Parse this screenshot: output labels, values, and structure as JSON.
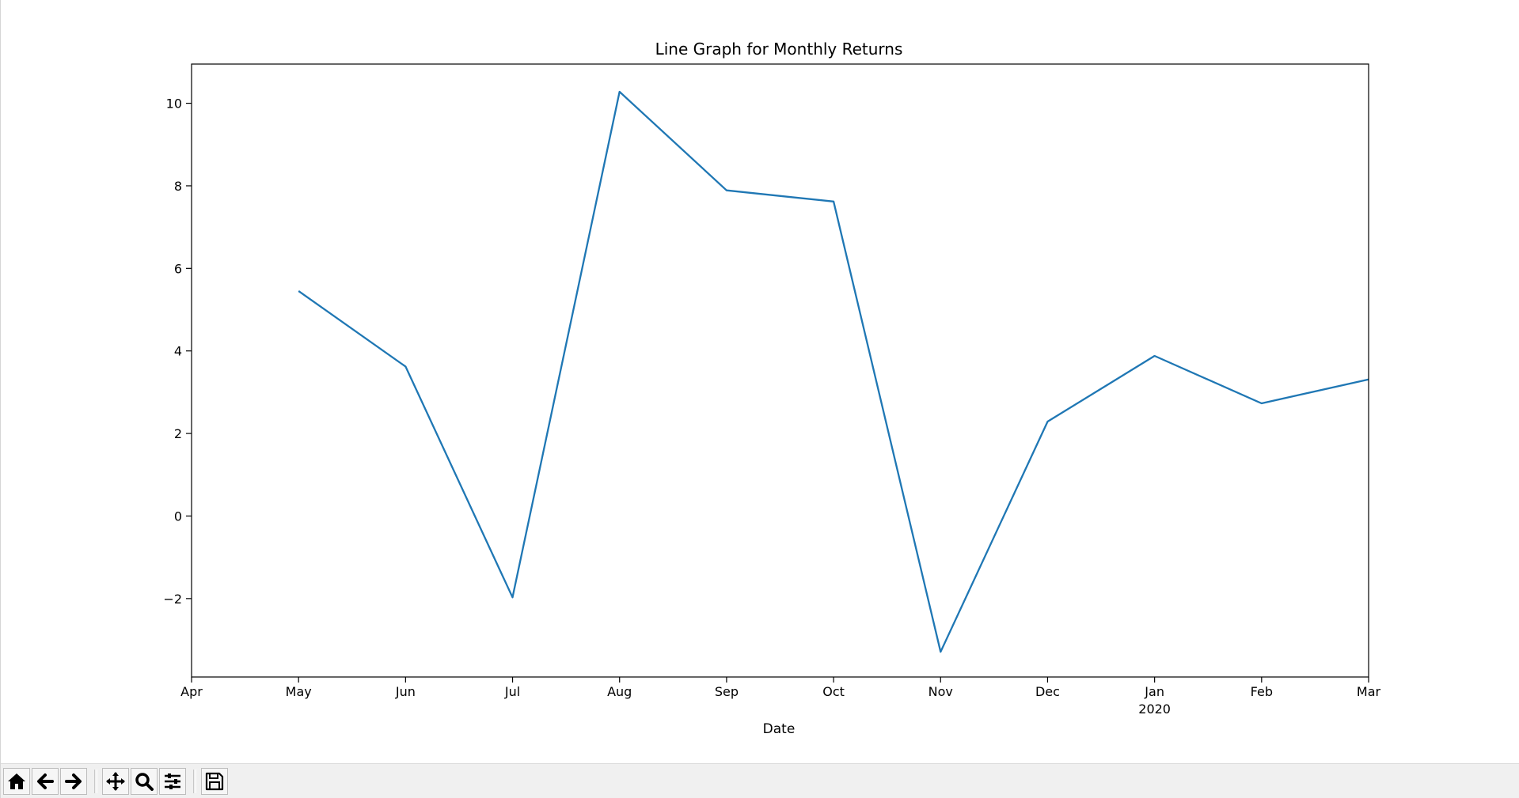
{
  "chart_data": {
    "type": "line",
    "title": "Line Graph for Monthly Returns",
    "xlabel": "Date",
    "ylabel": "",
    "x_ticks": [
      "Apr",
      "May",
      "Jun",
      "Jul",
      "Aug",
      "Sep",
      "Oct",
      "Nov",
      "Dec",
      "Jan",
      "Feb",
      "Mar"
    ],
    "x_tick_sublabels": {
      "Jan": "2020"
    },
    "y_ticks": [
      -2,
      0,
      2,
      4,
      6,
      8,
      10
    ],
    "ylim": [
      -3.9,
      10.95
    ],
    "xlim": [
      "2019-04",
      "2020-03"
    ],
    "grid": false,
    "series": [
      {
        "color": "#1f77b4",
        "x": [
          "2019-05",
          "2019-06",
          "2019-07",
          "2019-08",
          "2019-09",
          "2019-10",
          "2019-11",
          "2019-12",
          "2020-01",
          "2020-02",
          "2020-03"
        ],
        "values": [
          5.45,
          3.62,
          -1.97,
          10.28,
          7.89,
          7.62,
          -3.29,
          2.29,
          3.88,
          2.73,
          3.31
        ]
      }
    ]
  },
  "toolbar": {
    "buttons": [
      {
        "name": "home-button",
        "icon": "home-icon"
      },
      {
        "name": "back-button",
        "icon": "arrow-left-icon"
      },
      {
        "name": "forward-button",
        "icon": "arrow-right-icon"
      },
      {
        "name": "pan-button",
        "icon": "move-icon"
      },
      {
        "name": "zoom-button",
        "icon": "magnifier-icon"
      },
      {
        "name": "configure-subplots-button",
        "icon": "sliders-icon"
      },
      {
        "name": "save-button",
        "icon": "floppy-disk-icon"
      }
    ]
  }
}
